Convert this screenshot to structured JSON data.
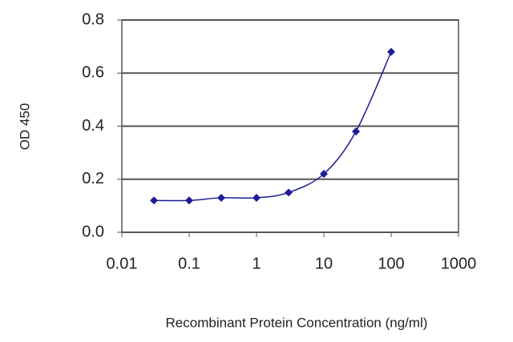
{
  "chart_data": {
    "type": "line",
    "xlabel": "Recombinant Protein Concentration (ng/ml)",
    "ylabel": "OD 450",
    "x": [
      0.03,
      0.1,
      0.3,
      1,
      3,
      10,
      30,
      100
    ],
    "series": [
      {
        "color": "#1c1c96",
        "values": [
          0.12,
          0.12,
          0.13,
          0.13,
          0.15,
          0.22,
          0.38,
          0.68
        ]
      }
    ],
    "xscale": "log",
    "xlim": [
      0.01,
      1000
    ],
    "xticks": [
      0.01,
      0.1,
      1,
      10,
      100,
      1000
    ],
    "ylim": [
      0,
      0.8
    ],
    "yticks": [
      {
        "value": 0,
        "label": "0.0"
      },
      0.2,
      0.4,
      0.6,
      0.8
    ],
    "grid": true
  }
}
